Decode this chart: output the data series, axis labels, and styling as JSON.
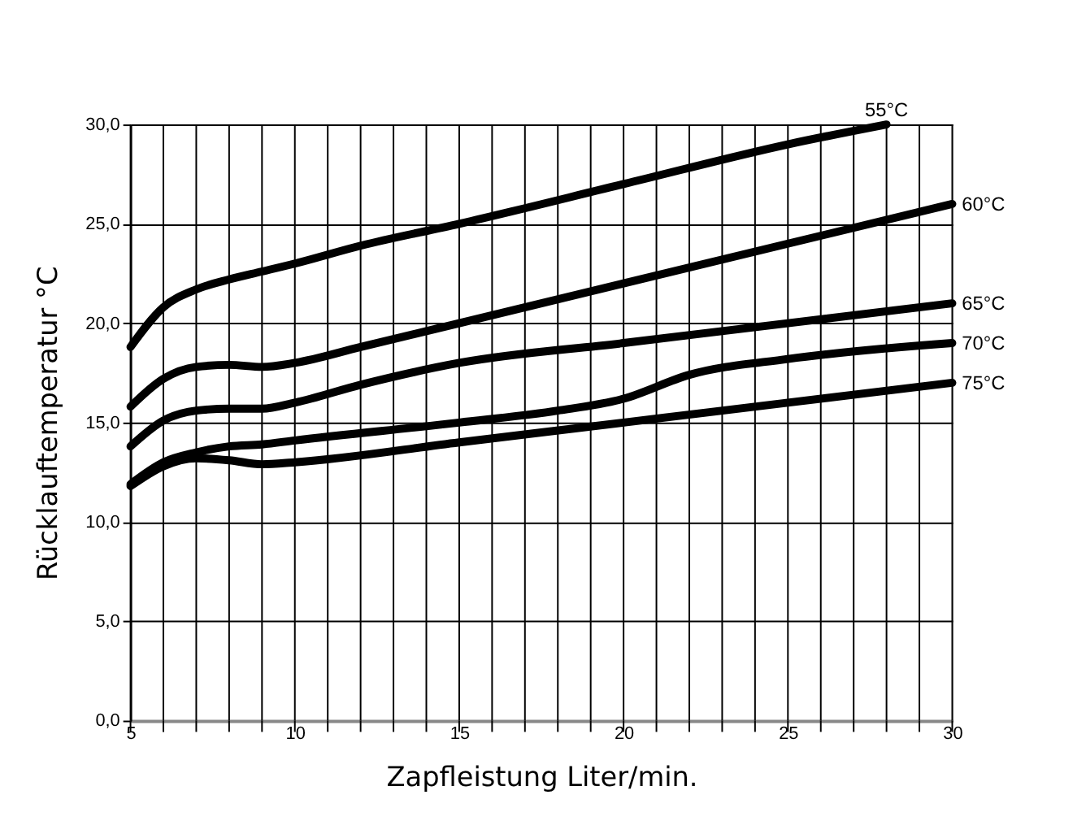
{
  "chart_data": {
    "type": "line",
    "xlabel": "Zapfleistung Liter/min.",
    "ylabel": "Rücklauftemperatur °C",
    "xlim": [
      5,
      30
    ],
    "ylim": [
      0,
      30
    ],
    "xticks": [
      5,
      {
        "value": 6,
        "label": null
      },
      {
        "value": 7,
        "label": null
      },
      {
        "value": 8,
        "label": null
      },
      {
        "value": 9,
        "label": null
      },
      10,
      {
        "value": 11,
        "label": null
      },
      {
        "value": 12,
        "label": null
      },
      {
        "value": 13,
        "label": null
      },
      {
        "value": 14,
        "label": null
      },
      15,
      {
        "value": 16,
        "label": null
      },
      {
        "value": 17,
        "label": null
      },
      {
        "value": 18,
        "label": null
      },
      {
        "value": 19,
        "label": null
      },
      20,
      {
        "value": 21,
        "label": null
      },
      {
        "value": 22,
        "label": null
      },
      {
        "value": 23,
        "label": null
      },
      {
        "value": 24,
        "label": null
      },
      25,
      {
        "value": 26,
        "label": null
      },
      {
        "value": 27,
        "label": null
      },
      {
        "value": 28,
        "label": null
      },
      {
        "value": 29,
        "label": null
      },
      30
    ],
    "yticks": [
      {
        "value": 0,
        "label": "0,0"
      },
      {
        "value": 5,
        "label": "5,0"
      },
      {
        "value": 10,
        "label": "10,0"
      },
      {
        "value": 15,
        "label": "15,0"
      },
      {
        "value": 20,
        "label": "20,0"
      },
      {
        "value": 25,
        "label": "25,0"
      },
      {
        "value": 30,
        "label": "30,0"
      }
    ],
    "grid": true,
    "marker": "none",
    "line_style": "solid",
    "series": [
      {
        "name": "55°C",
        "color": "#000000",
        "x": [
          5,
          6,
          7,
          8,
          9,
          10,
          12,
          15,
          20,
          25,
          28
        ],
        "values": [
          18.8,
          20.8,
          21.7,
          22.2,
          22.6,
          23,
          23.9,
          25,
          27,
          29,
          30
        ]
      },
      {
        "name": "60°C",
        "color": "#000000",
        "x": [
          5,
          6,
          7,
          8,
          9,
          10,
          12,
          15,
          20,
          25,
          30
        ],
        "values": [
          15.8,
          17.2,
          17.8,
          17.9,
          17.8,
          18,
          18.8,
          20,
          22,
          24,
          26
        ]
      },
      {
        "name": "65°C",
        "color": "#000000",
        "x": [
          5,
          6,
          7,
          8,
          9,
          10,
          12,
          15,
          20,
          25,
          30
        ],
        "values": [
          13.8,
          15.1,
          15.6,
          15.7,
          15.7,
          16,
          16.9,
          18,
          19,
          20,
          21
        ]
      },
      {
        "name": "70°C",
        "color": "#000000",
        "x": [
          5,
          6,
          7,
          8,
          9,
          10,
          15,
          18,
          20,
          22,
          25,
          30
        ],
        "values": [
          11.9,
          13,
          13.5,
          13.8,
          13.9,
          14.1,
          15,
          15.6,
          16.2,
          17.4,
          18.2,
          19
        ]
      },
      {
        "name": "75°C",
        "color": "#000000",
        "x": [
          5,
          6,
          7,
          8,
          9,
          10,
          15,
          20,
          25,
          30
        ],
        "values": [
          11.8,
          12.8,
          13.2,
          13.1,
          12.9,
          13,
          14,
          15,
          16,
          17
        ]
      }
    ]
  }
}
